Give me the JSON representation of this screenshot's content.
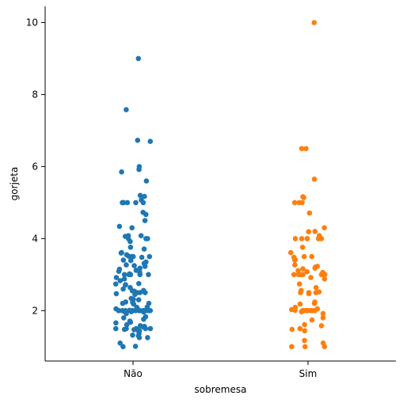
{
  "chart_data": {
    "type": "scatter",
    "xlabel": "sobremesa",
    "ylabel": "gorjeta",
    "categories": [
      "Não",
      "Sim"
    ],
    "ylim": [
      0.6,
      10.45
    ],
    "yticks": [
      "2",
      "4",
      "6",
      "8",
      "10"
    ],
    "grid": false,
    "legend": "none",
    "colors": [
      "#1f77b4",
      "#ff7f0e"
    ],
    "series": [
      {
        "values": [
          9.0,
          7.58,
          6.73,
          6.7,
          6.0,
          5.92,
          5.85,
          5.6,
          5.2,
          5.17,
          5.07,
          5.0,
          5.0,
          5.0,
          5.0,
          5.0,
          5.0,
          4.73,
          4.67,
          4.5,
          4.34,
          4.3,
          4.08,
          4.08,
          4.06,
          4.0,
          4.0,
          4.0,
          3.92,
          3.76,
          3.71,
          3.61,
          3.6,
          3.55,
          3.51,
          3.5,
          3.5,
          3.5,
          3.48,
          3.4,
          3.39,
          3.35,
          3.31,
          3.27,
          3.25,
          3.23,
          3.18,
          3.15,
          3.12,
          3.09,
          3.07,
          3.02,
          3.0,
          3.0,
          3.0,
          3.0,
          3.0,
          3.0,
          3.0,
          2.92,
          2.88,
          2.83,
          2.75,
          2.74,
          2.72,
          2.71,
          2.64,
          2.6,
          2.56,
          2.55,
          2.54,
          2.5,
          2.5,
          2.5,
          2.47,
          2.45,
          2.34,
          2.31,
          2.3,
          2.24,
          2.23,
          2.2,
          2.2,
          2.18,
          2.1,
          2.09,
          2.05,
          2.03,
          2.02,
          2.01,
          2.0,
          2.0,
          2.0,
          2.0,
          2.0,
          2.0,
          2.0,
          2.0,
          2.0,
          2.0,
          2.0,
          2.0,
          2.0,
          2.0,
          2.0,
          1.98,
          1.97,
          1.96,
          1.92,
          1.83,
          1.8,
          1.76,
          1.71,
          1.68,
          1.66,
          1.61,
          1.58,
          1.56,
          1.55,
          1.5,
          1.5,
          1.5,
          1.5,
          1.5,
          1.48,
          1.47,
          1.45,
          1.44,
          1.36,
          1.32,
          1.3,
          1.25,
          1.25,
          1.1,
          1.01,
          1.0
        ]
      },
      {
        "values": [
          10.0,
          6.5,
          6.5,
          5.65,
          5.16,
          5.14,
          5.0,
          5.0,
          5.0,
          4.71,
          4.3,
          4.2,
          4.19,
          4.08,
          4.0,
          4.0,
          4.0,
          4.0,
          4.0,
          4.0,
          3.76,
          3.61,
          3.5,
          3.5,
          3.48,
          3.41,
          3.4,
          3.27,
          3.23,
          3.21,
          3.18,
          3.16,
          3.11,
          3.08,
          3.06,
          3.0,
          3.0,
          3.0,
          3.0,
          3.0,
          3.0,
          3.0,
          2.92,
          2.88,
          2.74,
          2.64,
          2.56,
          2.52,
          2.5,
          2.5,
          2.5,
          2.47,
          2.24,
          2.2,
          2.18,
          2.09,
          2.05,
          2.03,
          2.01,
          2.0,
          2.0,
          2.0,
          2.0,
          2.0,
          2.0,
          2.0,
          2.0,
          2.0,
          2.0,
          1.97,
          1.92,
          1.8,
          1.74,
          1.61,
          1.58,
          1.5,
          1.48,
          1.44,
          1.17,
          1.1,
          1.0,
          1.0,
          1.0
        ]
      }
    ]
  }
}
